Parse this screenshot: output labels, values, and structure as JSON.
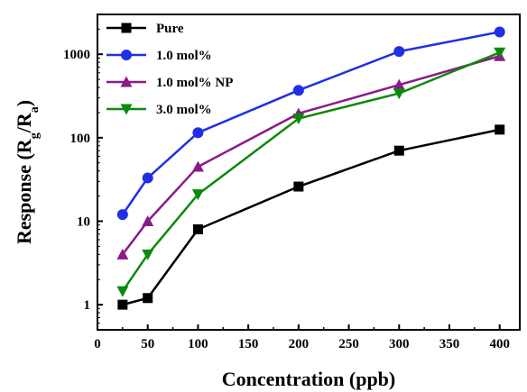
{
  "chart_data": {
    "type": "line",
    "xlabel": "Concentration (ppb)",
    "ylabel": {
      "main": "Response (R",
      "sub1": "g",
      "mid": "/R",
      "sub2": "a",
      "end": ")"
    },
    "xlim": [
      0,
      420
    ],
    "ylim": [
      0.5,
      3000
    ],
    "yscale": "log",
    "x_ticks": [
      0,
      50,
      100,
      150,
      200,
      250,
      300,
      350,
      400
    ],
    "y_ticks": [
      1,
      10,
      100,
      1000
    ],
    "y_tick_labels": [
      "1",
      "10",
      "100",
      "1000"
    ],
    "x": [
      25,
      50,
      100,
      200,
      300,
      400
    ],
    "series": [
      {
        "name": "Pure",
        "color": "#000000",
        "marker": "square",
        "values": [
          1.0,
          1.2,
          8,
          26,
          70,
          125
        ]
      },
      {
        "name": "1.0 mol%",
        "color": "#1f2fe6",
        "marker": "circle",
        "values": [
          12,
          33,
          115,
          370,
          1080,
          1850
        ]
      },
      {
        "name": "1.0 mol% NP",
        "color": "#8b1a8b",
        "marker": "triangle-up",
        "values": [
          4,
          10,
          45,
          195,
          430,
          950
        ]
      },
      {
        "name": "3.0 mol%",
        "color": "#0a8a0a",
        "marker": "triangle-down",
        "values": [
          1.45,
          4,
          21,
          170,
          340,
          1050
        ]
      }
    ],
    "legend_position": "top-left",
    "grid": false
  }
}
